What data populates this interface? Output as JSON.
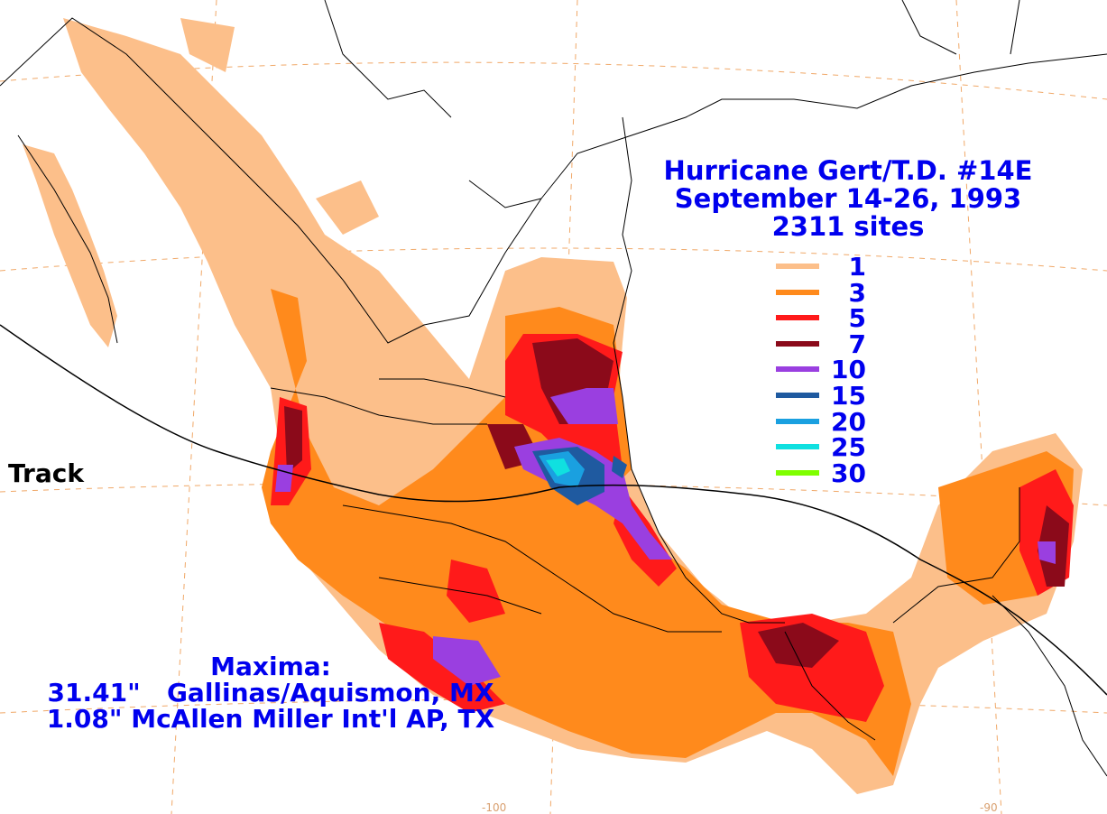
{
  "title": {
    "line1": "Hurricane Gert/T.D. #14E",
    "line2": "September 14-26, 1993",
    "line3": "2311 sites"
  },
  "legend": {
    "items": [
      {
        "label": "1",
        "color": "#fcbf8a"
      },
      {
        "label": "3",
        "color": "#ff8a1c"
      },
      {
        "label": "5",
        "color": "#ff1a1a"
      },
      {
        "label": "7",
        "color": "#8b0a1a"
      },
      {
        "label": "10",
        "color": "#9a3fe0"
      },
      {
        "label": "15",
        "color": "#1f5aa0"
      },
      {
        "label": "20",
        "color": "#1aa0e0"
      },
      {
        "label": "25",
        "color": "#10e0e0"
      },
      {
        "label": "30",
        "color": "#7fff00"
      }
    ]
  },
  "track_label": "Track",
  "maxima": {
    "heading": "Maxima:",
    "line1": "31.41\"   Gallinas/Aquismon, MX",
    "line2": "1.08\" McAllen Miller Int'l AP, TX"
  },
  "ticks": {
    "lon_left": "-100",
    "lon_right": "-90"
  },
  "colors": {
    "graticule": "#f0a868",
    "border": "#000000",
    "track": "#000000"
  }
}
